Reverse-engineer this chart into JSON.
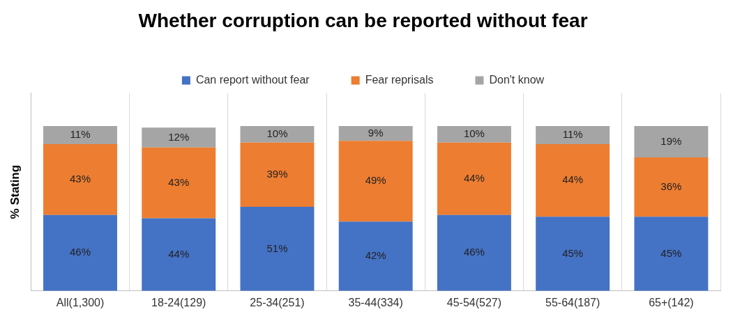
{
  "chart_data": {
    "type": "bar",
    "title": "Whether corruption can be reported without fear",
    "ylabel": "% Stating",
    "categories": [
      "All(1,300)",
      "18-24(129)",
      "25-34(251)",
      "35-44(334)",
      "45-54(527)",
      "55-64(187)",
      "65+(142)"
    ],
    "series": [
      {
        "name": "Can report without fear",
        "color": "#4472c4",
        "values": [
          46,
          44,
          51,
          42,
          46,
          45,
          45
        ],
        "value_labels": [
          "46%",
          "44%",
          "51%",
          "42%",
          "46%",
          "45%",
          "45%"
        ]
      },
      {
        "name": "Fear reprisals",
        "color": "#ed7d31",
        "values": [
          43,
          43,
          39,
          49,
          44,
          44,
          36
        ],
        "value_labels": [
          "43%",
          "43%",
          "39%",
          "49%",
          "44%",
          "44%",
          "36%"
        ]
      },
      {
        "name": "Don't know",
        "color": "#a5a5a5",
        "values": [
          11,
          12,
          10,
          9,
          10,
          11,
          19
        ],
        "value_labels": [
          "11%",
          "12%",
          "10%",
          "9%",
          "10%",
          "11%",
          "19%"
        ]
      }
    ],
    "stacked": true,
    "grid": "x",
    "legend": "top",
    "tick_labels": "x"
  }
}
